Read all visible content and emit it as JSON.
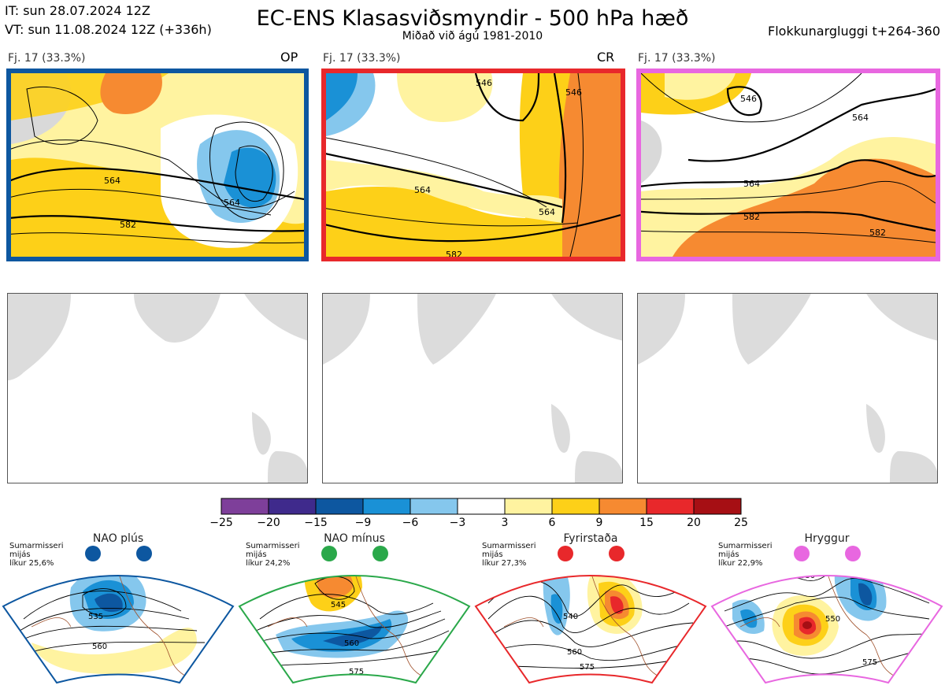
{
  "header": {
    "it_line": "IT: sun 28.07.2024 12Z",
    "vt_line": "VT: sun 11.08.2024 12Z  (+336h)",
    "title": "EC-ENS Klasasviðsmyndir - 500 hPa hæð",
    "subtitle": "Miðað við ágú 1981-2010",
    "window": "Flokkunargluggi t+264-360"
  },
  "panels": [
    {
      "label": "Fj. 17 (33.3%)",
      "tag": "OP",
      "border": "#0d57a0",
      "contours": [
        "564",
        "564",
        "582",
        "564",
        "582"
      ]
    },
    {
      "label": "Fj. 17 (33.3%)",
      "tag": "CR",
      "border": "#e8282b",
      "contours": [
        "546",
        "546",
        "564",
        "564",
        "582",
        "582"
      ]
    },
    {
      "label": "Fj. 17 (33.3%)",
      "tag": "",
      "border": "#e867e0",
      "contours": [
        "546",
        "564",
        "564",
        "582",
        "582"
      ]
    }
  ],
  "colorbar": {
    "labels": [
      "−25",
      "−20",
      "−15",
      "−9",
      "−6",
      "−3",
      "3",
      "6",
      "9",
      "15",
      "20",
      "25"
    ],
    "colors": [
      "#7e3f9a",
      "#3f2a8c",
      "#0d57a0",
      "#1a91d6",
      "#85c7ed",
      "#ffffff",
      "#fff3a0",
      "#fdd018",
      "#f68a31",
      "#e8282b",
      "#a60f14"
    ]
  },
  "regimes": [
    {
      "name": "NAO plús",
      "line1": "Sumarmisseri",
      "line2": "mijás",
      "line3": "líkur 25,6%",
      "color": "#0d57a0",
      "contours": [
        "535",
        "560"
      ]
    },
    {
      "name": "NAO mínus",
      "line1": "Sumarmisseri",
      "line2": "mijás",
      "line3": "líkur 24,2%",
      "color": "#2aa84a",
      "contours": [
        "545",
        "560",
        "575"
      ]
    },
    {
      "name": "Fyrirstaða",
      "line1": "Sumarmisseri",
      "line2": "mijás",
      "line3": "líkur 27,3%",
      "color": "#e8282b",
      "contours": [
        "540",
        "560",
        "575"
      ]
    },
    {
      "name": "Hryggur",
      "line1": "Sumarmisseri",
      "line2": "mijás",
      "line3": "líkur 22,9%",
      "color": "#e867e0",
      "contours": [
        "530",
        "550",
        "575"
      ]
    }
  ]
}
